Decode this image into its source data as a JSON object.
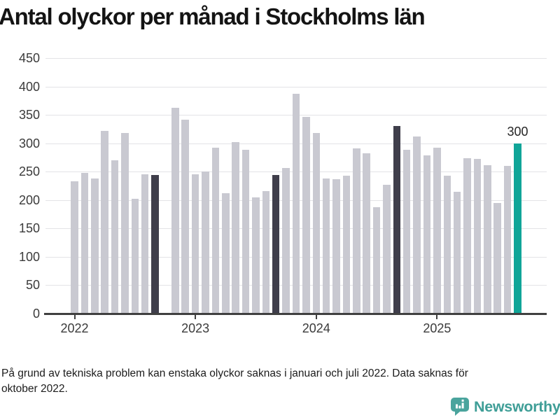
{
  "title": "Antal olyckor per månad i Stockholms län",
  "footnote": "På grund av tekniska problem kan enstaka olyckor saknas i januari och juli 2022. Data saknas för oktober 2022.",
  "logo": {
    "text": "Newsworthy"
  },
  "colors": {
    "bar": "#c9c9d1",
    "highlight_dark": "#3f3e4b",
    "highlight_current": "#10a598",
    "gridline": "#e3e3e6",
    "axis": "#404040",
    "tick_label": "#3b3b3b",
    "logo_teal": "#3f9e97"
  },
  "chart_data": {
    "type": "bar",
    "title": "Antal olyckor per månad i Stockholms län",
    "xlabel": "",
    "ylabel": "",
    "ylim": [
      0,
      450
    ],
    "ytick_step": 50,
    "grid": "horizontal",
    "legend": "none",
    "x": [
      "2022-01",
      "2022-02",
      "2022-03",
      "2022-04",
      "2022-05",
      "2022-06",
      "2022-07",
      "2022-08",
      "2022-09",
      "2022-10",
      "2022-11",
      "2022-12",
      "2023-01",
      "2023-02",
      "2023-03",
      "2023-04",
      "2023-05",
      "2023-06",
      "2023-07",
      "2023-08",
      "2023-09",
      "2023-10",
      "2023-11",
      "2023-12",
      "2024-01",
      "2024-02",
      "2024-03",
      "2024-04",
      "2024-05",
      "2024-06",
      "2024-07",
      "2024-08",
      "2024-09",
      "2024-10",
      "2024-11",
      "2024-12",
      "2025-01",
      "2025-02",
      "2025-03",
      "2025-04",
      "2025-05",
      "2025-06",
      "2025-07",
      "2025-08",
      "2025-09"
    ],
    "values": [
      233,
      248,
      238,
      322,
      270,
      318,
      202,
      245,
      244,
      null,
      362,
      341,
      245,
      250,
      292,
      212,
      302,
      288,
      205,
      216,
      244,
      256,
      387,
      347,
      318,
      238,
      237,
      243,
      291,
      282,
      188,
      227,
      331,
      289,
      312,
      279,
      292,
      243,
      214,
      274,
      272,
      261,
      195,
      260,
      300
    ],
    "missing_x": [
      "2022-10"
    ],
    "highlight_dark_x": [
      "2022-09",
      "2023-09",
      "2024-09"
    ],
    "highlight_current_x": "2025-09",
    "xtick_labels": [
      "2022",
      "2023",
      "2024",
      "2025"
    ],
    "annotations": [
      {
        "x": "2025-09",
        "text": "300"
      }
    ]
  }
}
